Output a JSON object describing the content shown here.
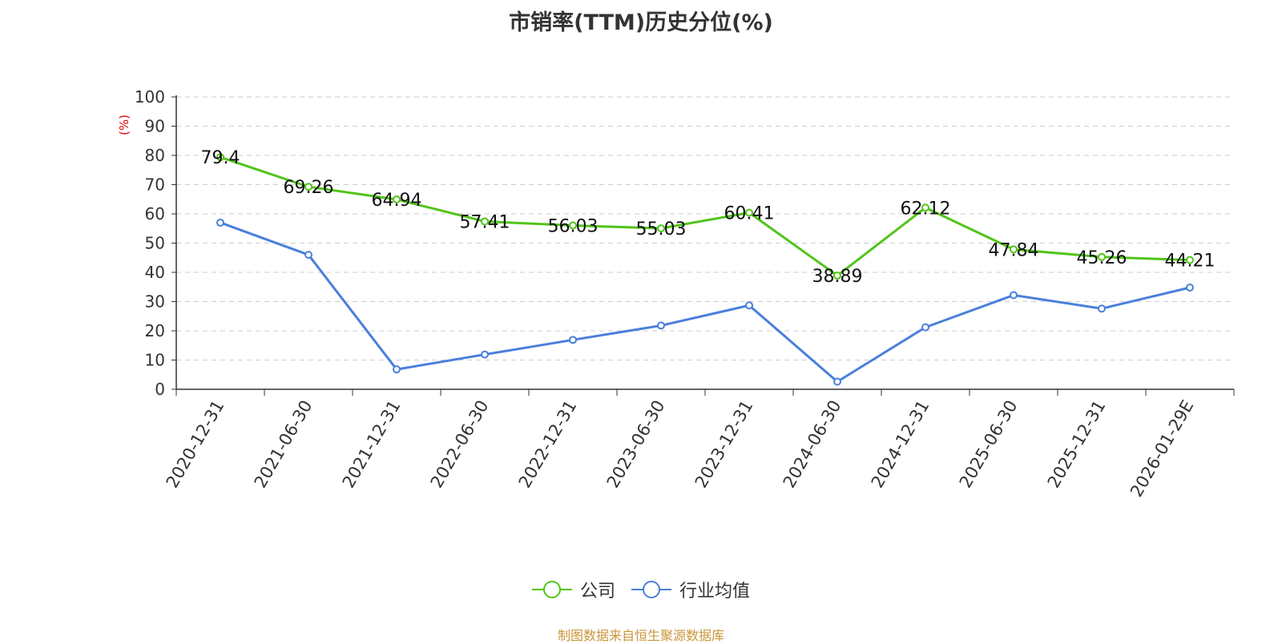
{
  "chart_data": {
    "type": "line",
    "title": "市销率(TTM)历史分位(%)",
    "ylabel": "(%)",
    "ylim": [
      0,
      100
    ],
    "yticks": [
      0,
      10,
      20,
      30,
      40,
      50,
      60,
      70,
      80,
      90,
      100
    ],
    "grid": true,
    "legend_position": "bottom-center",
    "categories": [
      "2020-12-31",
      "2021-06-30",
      "2021-12-31",
      "2022-06-30",
      "2022-12-31",
      "2023-06-30",
      "2023-12-31",
      "2024-06-30",
      "2024-12-31",
      "2025-06-30",
      "2025-12-31",
      "2026-01-29E"
    ],
    "series": [
      {
        "name": "公司",
        "color": "#52c41a",
        "values": [
          79.4,
          69.26,
          64.94,
          57.41,
          56.03,
          55.03,
          60.41,
          38.89,
          62.12,
          47.84,
          45.26,
          44.21
        ],
        "labels": [
          "79.4",
          "69.26",
          "64.94",
          "57.41",
          "56.03",
          "55.03",
          "60.41",
          "38.89",
          "62.12",
          "47.84",
          "45.26",
          "44.21"
        ]
      },
      {
        "name": "行业均值",
        "color": "#4a7fdc",
        "values": [
          57.0,
          46.0,
          6.8,
          11.9,
          16.9,
          21.8,
          28.7,
          2.6,
          21.2,
          32.2,
          27.6,
          34.8
        ]
      }
    ]
  },
  "source_note": "制图数据来自恒生聚源数据库"
}
